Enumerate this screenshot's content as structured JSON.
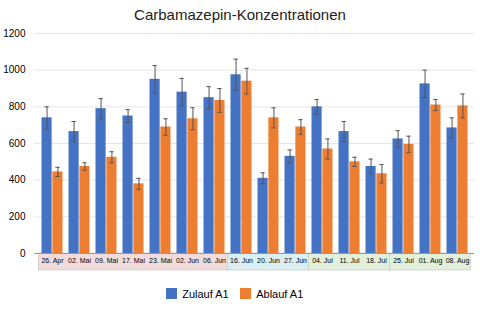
{
  "chart_data": {
    "type": "bar",
    "title": "Carbamazepin-Konzentrationen",
    "categories": [
      "26. Apr",
      "02. Mai",
      "09. Mai",
      "17. Mai",
      "23. Mai",
      "02. Jun",
      "06. Jun",
      "16. Jun",
      "20. Jun",
      "27. Jun",
      "04. Jul",
      "11. Jul",
      "18. Jul",
      "25. Jul",
      "01. Aug",
      "08. Aug"
    ],
    "series": [
      {
        "name": "Zulauf A1",
        "color": "#4472C4",
        "values": [
          740,
          665,
          790,
          750,
          950,
          880,
          850,
          975,
          410,
          530,
          800,
          665,
          475,
          625,
          925,
          685
        ],
        "errors": [
          60,
          55,
          55,
          35,
          75,
          75,
          60,
          85,
          30,
          35,
          40,
          55,
          40,
          45,
          75,
          55
        ]
      },
      {
        "name": "Ablauf A1",
        "color": "#ED7D31",
        "values": [
          445,
          475,
          525,
          380,
          690,
          735,
          835,
          940,
          740,
          690,
          570,
          500,
          435,
          595,
          810,
          805
        ],
        "errors": [
          25,
          20,
          30,
          30,
          45,
          60,
          65,
          70,
          55,
          40,
          55,
          25,
          50,
          45,
          30,
          65
        ]
      }
    ],
    "groups": [
      {
        "from": "26. Apr",
        "to": "06. Jun",
        "color": "#F2DCDB"
      },
      {
        "from": "16. Jun",
        "to": "27. Jun",
        "color": "#DAEEF3"
      },
      {
        "from": "04. Jul",
        "to": "18. Jul",
        "color": "#E2EFDA"
      },
      {
        "from": "25. Jul",
        "to": "08. Aug",
        "color": "#E2EFDA"
      }
    ],
    "ylim": [
      0,
      1200
    ],
    "yticks": [
      0,
      200,
      400,
      600,
      800,
      1000,
      1200
    ],
    "grid": true,
    "legend": "bottom"
  }
}
